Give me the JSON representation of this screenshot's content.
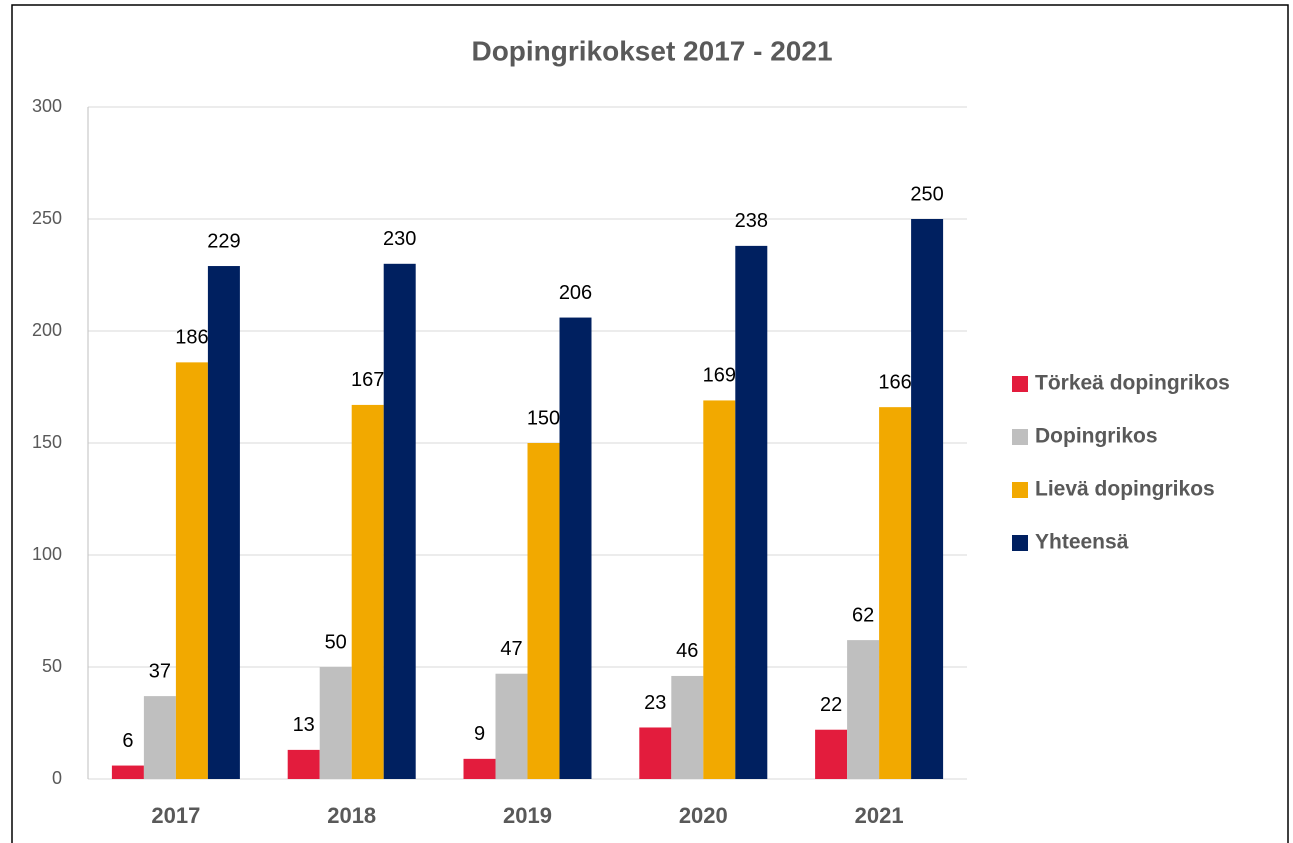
{
  "chart_data": {
    "type": "bar",
    "title": "Dopingrikokset 2017 - 2021",
    "categories": [
      "2017",
      "2018",
      "2019",
      "2020",
      "2021"
    ],
    "series": [
      {
        "name": "Törkeä dopingrikos",
        "color": "#e31c3d",
        "values": [
          6,
          13,
          9,
          23,
          22
        ]
      },
      {
        "name": "Dopingrikos",
        "color": "#bfbfbf",
        "values": [
          37,
          50,
          47,
          46,
          62
        ]
      },
      {
        "name": "Lievä dopingrikos",
        "color": "#f2a900",
        "values": [
          186,
          167,
          150,
          169,
          166
        ]
      },
      {
        "name": "Yhteensä",
        "color": "#002060",
        "values": [
          229,
          230,
          206,
          238,
          250
        ]
      }
    ],
    "ylim": [
      0,
      300
    ],
    "yticks": [
      0,
      50,
      100,
      150,
      200,
      250,
      300
    ],
    "grid": true,
    "legend": "right"
  }
}
